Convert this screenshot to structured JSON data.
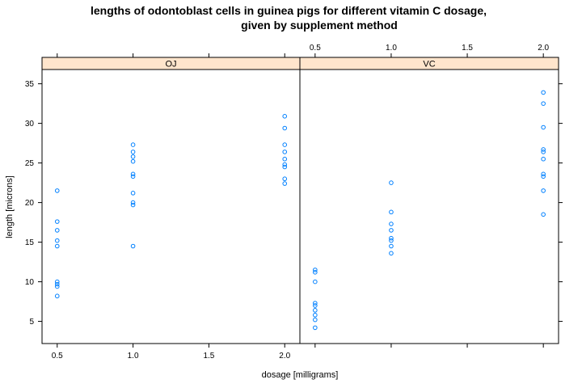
{
  "chart_data": {
    "type": "scatter",
    "title_line1": "lengths of odontoblast cells in guinea pigs for different vitamin C dosage,",
    "title_line2": "given by supplement method",
    "xlabel": "dosage [milligrams]",
    "ylabel": "length [microns]",
    "x_ticks": [
      0.5,
      1.0,
      1.5,
      2.0
    ],
    "x_tick_labels": [
      "0.5",
      "1.0",
      "1.5",
      "2.0"
    ],
    "y_ticks": [
      5,
      10,
      15,
      20,
      25,
      30,
      35
    ],
    "y_tick_labels": [
      "5",
      "10",
      "15",
      "20",
      "25",
      "30",
      "35"
    ],
    "xlim": [
      0.4,
      2.1
    ],
    "ylim": [
      2.2,
      36.8
    ],
    "panels": [
      {
        "name": "OJ",
        "points": [
          [
            0.5,
            21.5
          ],
          [
            0.5,
            17.6
          ],
          [
            0.5,
            16.5
          ],
          [
            0.5,
            15.2
          ],
          [
            0.5,
            14.5
          ],
          [
            0.5,
            10.0
          ],
          [
            0.5,
            9.7
          ],
          [
            0.5,
            9.4
          ],
          [
            0.5,
            8.2
          ],
          [
            1.0,
            27.3
          ],
          [
            1.0,
            26.4
          ],
          [
            1.0,
            25.8
          ],
          [
            1.0,
            25.2
          ],
          [
            1.0,
            23.6
          ],
          [
            1.0,
            23.3
          ],
          [
            1.0,
            21.2
          ],
          [
            1.0,
            20.0
          ],
          [
            1.0,
            19.7
          ],
          [
            1.0,
            14.5
          ],
          [
            2.0,
            30.9
          ],
          [
            2.0,
            29.4
          ],
          [
            2.0,
            27.3
          ],
          [
            2.0,
            26.4
          ],
          [
            2.0,
            25.5
          ],
          [
            2.0,
            24.8
          ],
          [
            2.0,
            24.5
          ],
          [
            2.0,
            23.0
          ],
          [
            2.0,
            22.4
          ]
        ]
      },
      {
        "name": "VC",
        "points": [
          [
            0.5,
            11.5
          ],
          [
            0.5,
            11.2
          ],
          [
            0.5,
            10.0
          ],
          [
            0.5,
            7.3
          ],
          [
            0.5,
            7.0
          ],
          [
            0.5,
            6.4
          ],
          [
            0.5,
            5.8
          ],
          [
            0.5,
            5.2
          ],
          [
            0.5,
            4.2
          ],
          [
            1.0,
            22.5
          ],
          [
            1.0,
            18.8
          ],
          [
            1.0,
            17.3
          ],
          [
            1.0,
            16.5
          ],
          [
            1.0,
            15.5
          ],
          [
            1.0,
            15.2
          ],
          [
            1.0,
            14.5
          ],
          [
            1.0,
            13.6
          ],
          [
            2.0,
            33.9
          ],
          [
            2.0,
            32.5
          ],
          [
            2.0,
            29.5
          ],
          [
            2.0,
            26.7
          ],
          [
            2.0,
            26.4
          ],
          [
            2.0,
            25.5
          ],
          [
            2.0,
            23.6
          ],
          [
            2.0,
            23.3
          ],
          [
            2.0,
            21.5
          ],
          [
            2.0,
            18.5
          ]
        ]
      }
    ],
    "grid": false,
    "marker": "open-circle",
    "point_color": "#0080ff",
    "strip_color": "#ffe5cc"
  }
}
